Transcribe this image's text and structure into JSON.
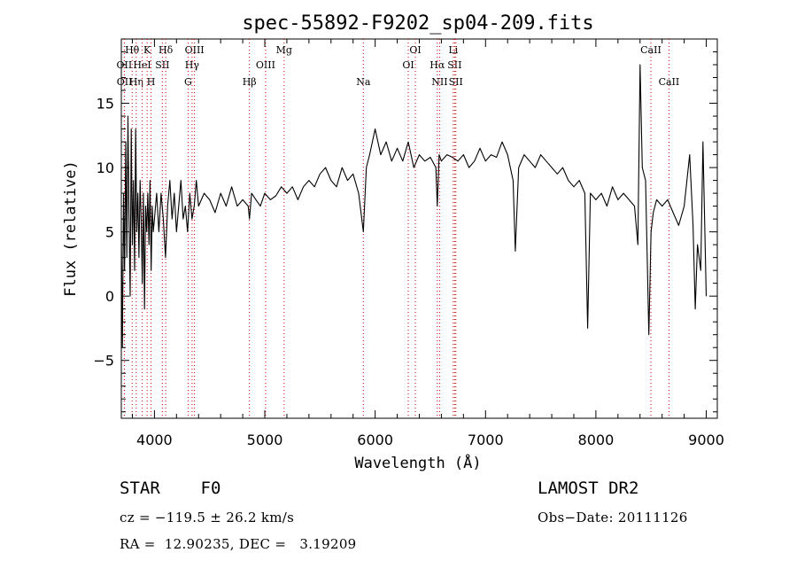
{
  "chart_data": {
    "type": "line",
    "title": "spec-55892-F9202_sp04-209.fits",
    "xlabel": "Wavelength (Å)",
    "ylabel": "Flux (relative)",
    "xlim": [
      3700,
      9100
    ],
    "ylim": [
      -9.5,
      20
    ],
    "xticks": [
      4000,
      5000,
      6000,
      7000,
      8000,
      9000
    ],
    "yticks": [
      -5,
      0,
      5,
      10,
      15
    ],
    "grid": false,
    "line_color": "#000000",
    "marker_color": "#cc0000",
    "series": [
      {
        "x": [
          3700,
          3710,
          3720,
          3730,
          3740,
          3750,
          3760,
          3770,
          3780,
          3790,
          3800,
          3810,
          3820,
          3830,
          3840,
          3850,
          3860,
          3870,
          3880,
          3890,
          3900,
          3910,
          3920,
          3930,
          3940,
          3950,
          3960,
          3970,
          3980,
          3990,
          4000,
          4020,
          4040,
          4060,
          4080,
          4100,
          4120,
          4140,
          4160,
          4180,
          4200,
          4220,
          4240,
          4260,
          4280,
          4300,
          4320,
          4340,
          4360,
          4380,
          4400,
          4450,
          4500,
          4550,
          4600,
          4650,
          4700,
          4750,
          4800,
          4850,
          4861,
          4880,
          4920,
          4960,
          5000,
          5050,
          5100,
          5150,
          5200,
          5250,
          5300,
          5350,
          5400,
          5450,
          5500,
          5550,
          5600,
          5650,
          5700,
          5750,
          5800,
          5850,
          5893,
          5920,
          5950,
          6000,
          6050,
          6100,
          6150,
          6200,
          6250,
          6300,
          6350,
          6400,
          6450,
          6500,
          6550,
          6563,
          6580,
          6600,
          6650,
          6700,
          6750,
          6800,
          6850,
          6900,
          6950,
          7000,
          7050,
          7100,
          7150,
          7200,
          7250,
          7270,
          7300,
          7350,
          7400,
          7450,
          7500,
          7550,
          7600,
          7650,
          7700,
          7750,
          7800,
          7850,
          7900,
          7925,
          7950,
          8000,
          8050,
          8100,
          8150,
          8200,
          8250,
          8300,
          8350,
          8380,
          8400,
          8420,
          8450,
          8480,
          8500,
          8520,
          8550,
          8600,
          8650,
          8700,
          8750,
          8800,
          8850,
          8880,
          8900,
          8920,
          8950,
          8970,
          9000
        ],
        "y": [
          5.0,
          -4.0,
          8.0,
          2.0,
          12.0,
          3.0,
          14.0,
          6.0,
          0.0,
          13.0,
          4.0,
          9.0,
          2.0,
          13.0,
          5.0,
          8.0,
          3.0,
          9.0,
          6.0,
          1.0,
          8.0,
          -1.0,
          7.0,
          5.0,
          8.0,
          4.0,
          9.0,
          2.0,
          7.0,
          5.0,
          6.0,
          8.0,
          5.0,
          8.0,
          6.0,
          3.0,
          7.0,
          9.0,
          6.0,
          8.0,
          5.0,
          7.0,
          9.0,
          6.0,
          7.0,
          5.0,
          8.0,
          6.0,
          7.0,
          9.0,
          7.0,
          8.0,
          7.5,
          6.5,
          8.0,
          7.0,
          8.5,
          7.0,
          7.5,
          7.0,
          6.0,
          8.0,
          7.5,
          7.0,
          8.0,
          7.5,
          7.8,
          8.5,
          8.0,
          8.5,
          7.5,
          8.5,
          9.0,
          8.5,
          9.5,
          10.0,
          9.0,
          8.5,
          10.0,
          9.0,
          9.5,
          8.0,
          5.0,
          10.0,
          11.0,
          13.0,
          11.0,
          12.0,
          10.5,
          11.5,
          10.5,
          12.0,
          10.0,
          11.0,
          10.5,
          10.8,
          10.0,
          7.0,
          11.0,
          10.5,
          11.0,
          10.8,
          10.5,
          11.0,
          10.0,
          10.5,
          11.5,
          10.5,
          11.0,
          10.8,
          12.0,
          11.0,
          9.0,
          3.5,
          10.0,
          11.0,
          10.5,
          10.0,
          11.0,
          10.5,
          10.0,
          9.5,
          10.0,
          9.0,
          8.5,
          9.0,
          8.0,
          -2.5,
          8.0,
          7.5,
          8.0,
          7.0,
          8.5,
          7.5,
          8.0,
          7.5,
          7.0,
          4.0,
          18.0,
          10.0,
          9.0,
          -3.0,
          5.0,
          6.5,
          7.5,
          7.0,
          7.5,
          6.5,
          5.5,
          7.0,
          11.0,
          5.5,
          -1.0,
          4.0,
          2.0,
          12.0,
          0.0
        ]
      }
    ],
    "line_markers": [
      {
        "label": "Hθ",
        "x": 3798,
        "row": 1
      },
      {
        "label": "OII",
        "x": 3727,
        "row": 2
      },
      {
        "label": "OII",
        "x": 3729,
        "row": 3
      },
      {
        "label": "Hη",
        "x": 3835,
        "row": 3
      },
      {
        "label": "K",
        "x": 3934,
        "row": 1
      },
      {
        "label": "HeI",
        "x": 3889,
        "row": 2
      },
      {
        "label": "H",
        "x": 3969,
        "row": 3
      },
      {
        "label": "Hδ",
        "x": 4102,
        "row": 1
      },
      {
        "label": "SII",
        "x": 4072,
        "row": 2
      },
      {
        "label": "OIII",
        "x": 4363,
        "row": 1
      },
      {
        "label": "Hγ",
        "x": 4341,
        "row": 2
      },
      {
        "label": "G",
        "x": 4305,
        "row": 3
      },
      {
        "label": "Mg",
        "x": 5175,
        "row": 1
      },
      {
        "label": "OIII",
        "x": 5007,
        "row": 2
      },
      {
        "label": "Hβ",
        "x": 4861,
        "row": 3
      },
      {
        "label": "Na",
        "x": 5893,
        "row": 3
      },
      {
        "label": "OI",
        "x": 6364,
        "row": 1
      },
      {
        "label": "OI",
        "x": 6300,
        "row": 2
      },
      {
        "label": "Li",
        "x": 6708,
        "row": 1
      },
      {
        "label": "Hα",
        "x": 6563,
        "row": 2
      },
      {
        "label": "SII",
        "x": 6720,
        "row": 2
      },
      {
        "label": "NII",
        "x": 6584,
        "row": 3
      },
      {
        "label": "SII",
        "x": 6731,
        "row": 3
      },
      {
        "label": "CaII",
        "x": 8498,
        "row": 1
      },
      {
        "label": "CaII",
        "x": 8662,
        "row": 3
      }
    ]
  },
  "footer": {
    "object_class": "STAR    F0",
    "survey": "LAMOST DR2",
    "cz": "cz = −119.5 ± 26.2 km/s",
    "obs_date": "Obs−Date: 20111126",
    "radec": "RA =  12.90235, DEC =   3.19209"
  }
}
